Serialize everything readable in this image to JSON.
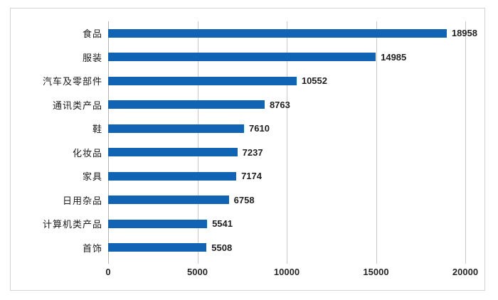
{
  "chart_data": {
    "type": "bar",
    "orientation": "horizontal",
    "title": "",
    "xlabel": "",
    "ylabel": "",
    "categories": [
      "食品",
      "服装",
      "汽车及零部件",
      "通讯类产品",
      "鞋",
      "化妆品",
      "家具",
      "日用杂品",
      "计算机类产品",
      "首饰"
    ],
    "values": [
      18958,
      14985,
      10552,
      8763,
      7610,
      7237,
      7174,
      6758,
      5541,
      5508
    ],
    "value_labels": [
      "18958",
      "14985",
      "10552",
      "8763",
      "7610",
      "7237",
      "7174",
      "6758",
      "5541",
      "5508"
    ],
    "xlim": [
      0,
      20000
    ],
    "x_ticks": [
      0,
      5000,
      10000,
      15000,
      20000
    ],
    "x_tick_labels": [
      "0",
      "5000",
      "10000",
      "15000",
      "20000"
    ],
    "grid": "vertical-only",
    "legend": "none",
    "colors": {
      "bar": "#1164b4",
      "gridline": "#c9c9c9",
      "axis_line": "#b3b3b3",
      "frame_border": "#d4d4d4",
      "label_text": "#1a1a1a",
      "value_text": "#1f1f1f"
    }
  }
}
